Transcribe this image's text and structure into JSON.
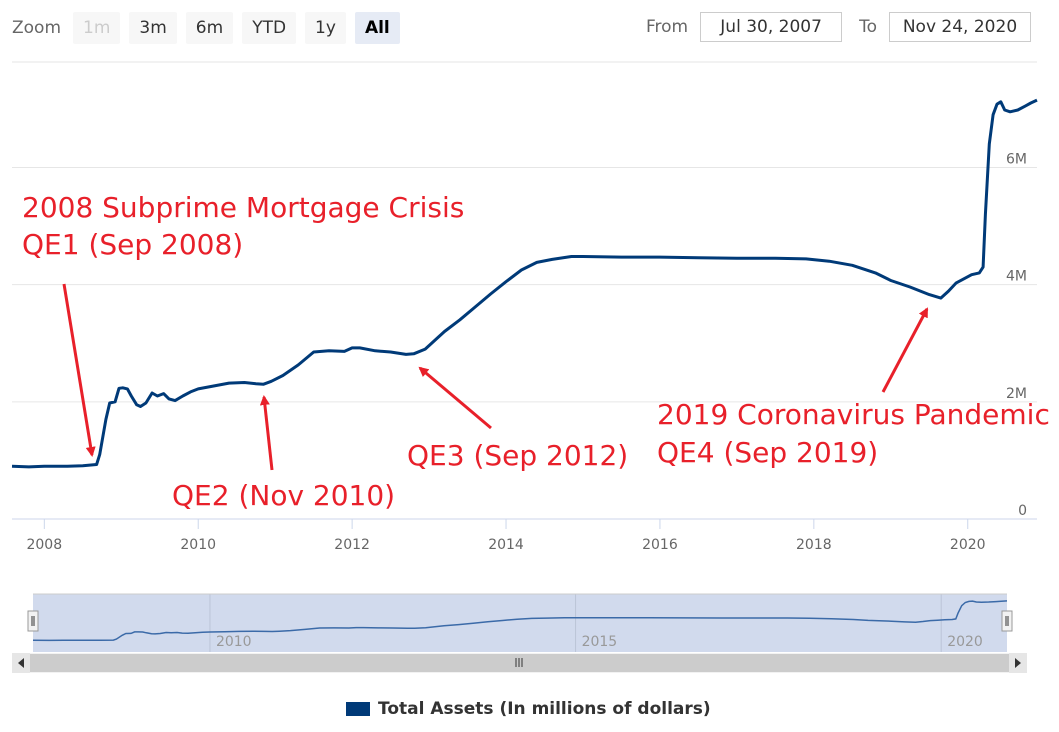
{
  "range_selector": {
    "zoom_label": "Zoom",
    "buttons": [
      {
        "label": "1m",
        "state": "disabled"
      },
      {
        "label": "3m",
        "state": "normal"
      },
      {
        "label": "6m",
        "state": "normal"
      },
      {
        "label": "YTD",
        "state": "normal"
      },
      {
        "label": "1y",
        "state": "normal"
      },
      {
        "label": "All",
        "state": "active"
      }
    ],
    "from_label": "From",
    "from_value": "Jul 30, 2007",
    "to_label": "To",
    "to_value": "Nov 24, 2020"
  },
  "legend": {
    "label": "Total Assets (In millions of dollars)",
    "color": "#003a78"
  },
  "navigator": {
    "labels": [
      "2010",
      "2015",
      "2020"
    ],
    "handle_icon": "grip-lines-icon",
    "scroll_left_icon": "triangle-left-icon",
    "scroll_right_icon": "triangle-right-icon",
    "scroll_grip_icon": "grip-lines-icon"
  },
  "chart_data": {
    "type": "line",
    "title": "",
    "xlabel": "",
    "ylabel": "",
    "x_ticks": [
      "2008",
      "2010",
      "2012",
      "2014",
      "2016",
      "2018",
      "2020"
    ],
    "y_ticks": [
      "0",
      "2M",
      "4M",
      "6M"
    ],
    "ylim": [
      0,
      7800000
    ],
    "xlim": [
      2007.58,
      2020.9
    ],
    "grid": true,
    "legend_position": "bottom-center",
    "series": [
      {
        "name": "Total Assets (In millions of dollars)",
        "color": "#003a78",
        "points": [
          [
            2007.58,
            0.9
          ],
          [
            2007.8,
            0.89
          ],
          [
            2008.0,
            0.9
          ],
          [
            2008.3,
            0.9
          ],
          [
            2008.5,
            0.91
          ],
          [
            2008.68,
            0.93
          ],
          [
            2008.72,
            1.1
          ],
          [
            2008.8,
            1.7
          ],
          [
            2008.85,
            1.98
          ],
          [
            2008.92,
            2.0
          ],
          [
            2008.97,
            2.23
          ],
          [
            2009.02,
            2.24
          ],
          [
            2009.08,
            2.22
          ],
          [
            2009.13,
            2.1
          ],
          [
            2009.2,
            1.95
          ],
          [
            2009.25,
            1.92
          ],
          [
            2009.32,
            1.98
          ],
          [
            2009.4,
            2.15
          ],
          [
            2009.47,
            2.1
          ],
          [
            2009.55,
            2.14
          ],
          [
            2009.62,
            2.05
          ],
          [
            2009.7,
            2.02
          ],
          [
            2009.8,
            2.1
          ],
          [
            2009.9,
            2.17
          ],
          [
            2010.0,
            2.22
          ],
          [
            2010.2,
            2.27
          ],
          [
            2010.4,
            2.32
          ],
          [
            2010.6,
            2.33
          ],
          [
            2010.75,
            2.31
          ],
          [
            2010.85,
            2.3
          ],
          [
            2010.95,
            2.35
          ],
          [
            2011.1,
            2.45
          ],
          [
            2011.3,
            2.63
          ],
          [
            2011.5,
            2.85
          ],
          [
            2011.7,
            2.87
          ],
          [
            2011.9,
            2.86
          ],
          [
            2012.0,
            2.92
          ],
          [
            2012.1,
            2.92
          ],
          [
            2012.3,
            2.87
          ],
          [
            2012.5,
            2.85
          ],
          [
            2012.7,
            2.81
          ],
          [
            2012.8,
            2.82
          ],
          [
            2012.95,
            2.9
          ],
          [
            2013.2,
            3.2
          ],
          [
            2013.4,
            3.4
          ],
          [
            2013.6,
            3.62
          ],
          [
            2013.8,
            3.84
          ],
          [
            2014.0,
            4.05
          ],
          [
            2014.2,
            4.25
          ],
          [
            2014.4,
            4.38
          ],
          [
            2014.6,
            4.43
          ],
          [
            2014.85,
            4.48
          ],
          [
            2015.0,
            4.48
          ],
          [
            2015.5,
            4.47
          ],
          [
            2016.0,
            4.47
          ],
          [
            2016.5,
            4.46
          ],
          [
            2017.0,
            4.45
          ],
          [
            2017.5,
            4.45
          ],
          [
            2017.9,
            4.44
          ],
          [
            2018.2,
            4.4
          ],
          [
            2018.5,
            4.33
          ],
          [
            2018.8,
            4.2
          ],
          [
            2019.0,
            4.07
          ],
          [
            2019.25,
            3.96
          ],
          [
            2019.5,
            3.83
          ],
          [
            2019.65,
            3.77
          ],
          [
            2019.75,
            3.89
          ],
          [
            2019.85,
            4.03
          ],
          [
            2019.95,
            4.1
          ],
          [
            2020.05,
            4.17
          ],
          [
            2020.15,
            4.2
          ],
          [
            2020.2,
            4.3
          ],
          [
            2020.23,
            5.2
          ],
          [
            2020.28,
            6.4
          ],
          [
            2020.33,
            6.9
          ],
          [
            2020.38,
            7.08
          ],
          [
            2020.43,
            7.12
          ],
          [
            2020.48,
            6.98
          ],
          [
            2020.55,
            6.95
          ],
          [
            2020.65,
            6.98
          ],
          [
            2020.75,
            7.05
          ],
          [
            2020.82,
            7.1
          ],
          [
            2020.9,
            7.15
          ]
        ]
      }
    ],
    "annotations": [
      {
        "lines": [
          "2008 Subprime Mortgage Crisis",
          "QE1 (Sep 2008)"
        ]
      },
      {
        "lines": [
          "QE2 (Nov 2010)"
        ]
      },
      {
        "lines": [
          "QE3 (Sep 2012)"
        ]
      },
      {
        "lines": [
          "2019 Coronavirus Pandemic",
          "QE4 (Sep 2019)"
        ]
      }
    ]
  }
}
